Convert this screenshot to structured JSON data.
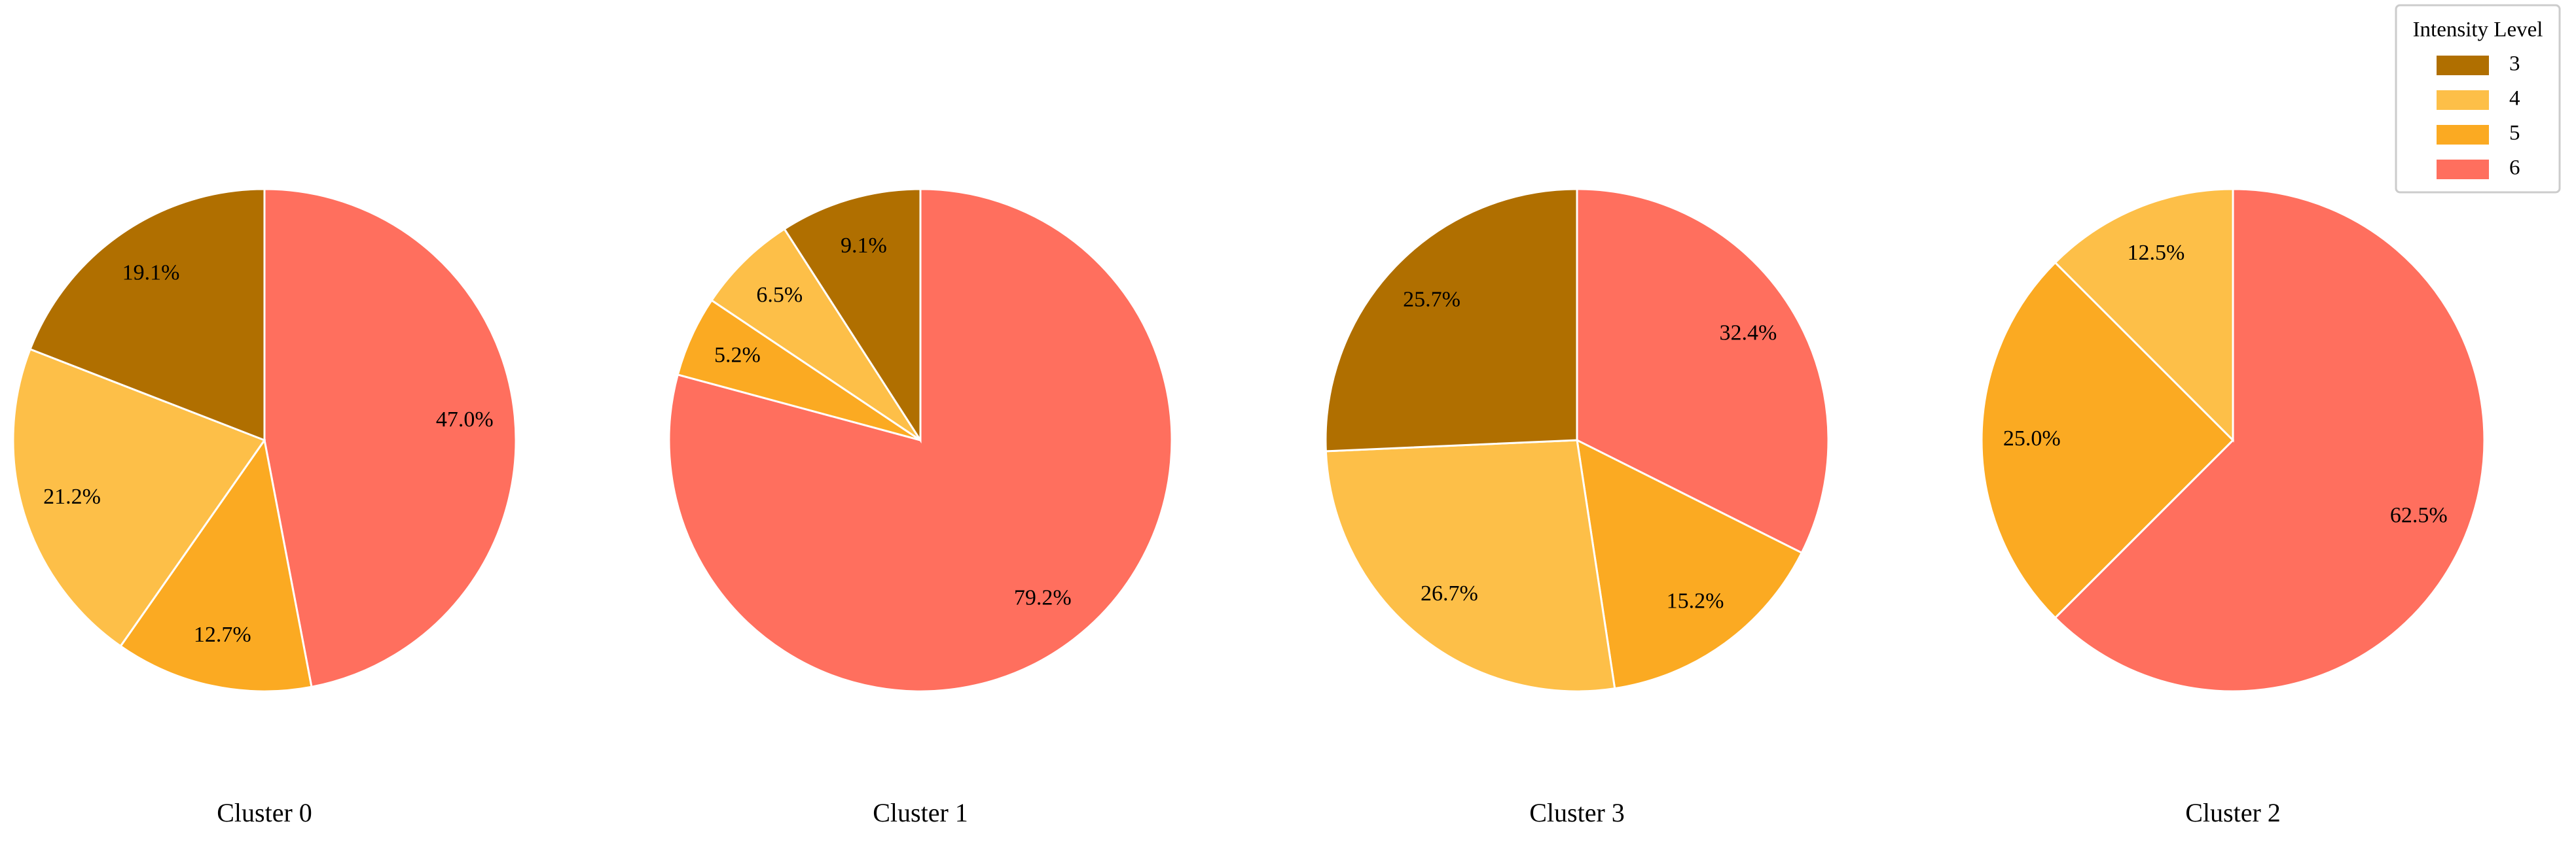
{
  "chart_data": [
    {
      "type": "pie",
      "title": "Cluster 0",
      "categories": [
        "6",
        "5",
        "4",
        "3"
      ],
      "values": [
        47.0,
        12.7,
        21.2,
        19.1
      ],
      "value_labels": [
        "47.0%",
        "12.7%",
        "21.2%",
        "19.1%"
      ],
      "colors": [
        "#ff6f5e",
        "#fbaa22",
        "#fdbf48",
        "#b06f00"
      ],
      "legend": "upper right",
      "legend_title": "Intensity Level"
    },
    {
      "type": "pie",
      "title": "Cluster 1",
      "categories": [
        "6",
        "5",
        "4",
        "3"
      ],
      "values": [
        79.2,
        5.2,
        6.5,
        9.1
      ],
      "value_labels": [
        "79.2%",
        "5.2%",
        "6.5%",
        "9.1%"
      ],
      "colors": [
        "#ff6f5e",
        "#fbaa22",
        "#fdbf48",
        "#b06f00"
      ]
    },
    {
      "type": "pie",
      "title": "Cluster 3",
      "categories": [
        "6",
        "5",
        "4",
        "3"
      ],
      "values": [
        32.4,
        15.2,
        26.7,
        25.7
      ],
      "value_labels": [
        "32.4%",
        "15.2%",
        "26.7%",
        "25.7%"
      ],
      "colors": [
        "#ff6f5e",
        "#fbaa22",
        "#fdbf48",
        "#b06f00"
      ]
    },
    {
      "type": "pie",
      "title": "Cluster 2",
      "categories": [
        "6",
        "5",
        "4"
      ],
      "values": [
        62.5,
        25.0,
        12.5
      ],
      "value_labels": [
        "62.5%",
        "25.0%",
        "12.5%"
      ],
      "colors": [
        "#ff6f5e",
        "#fbaa22",
        "#fdbf48"
      ]
    }
  ]
}
